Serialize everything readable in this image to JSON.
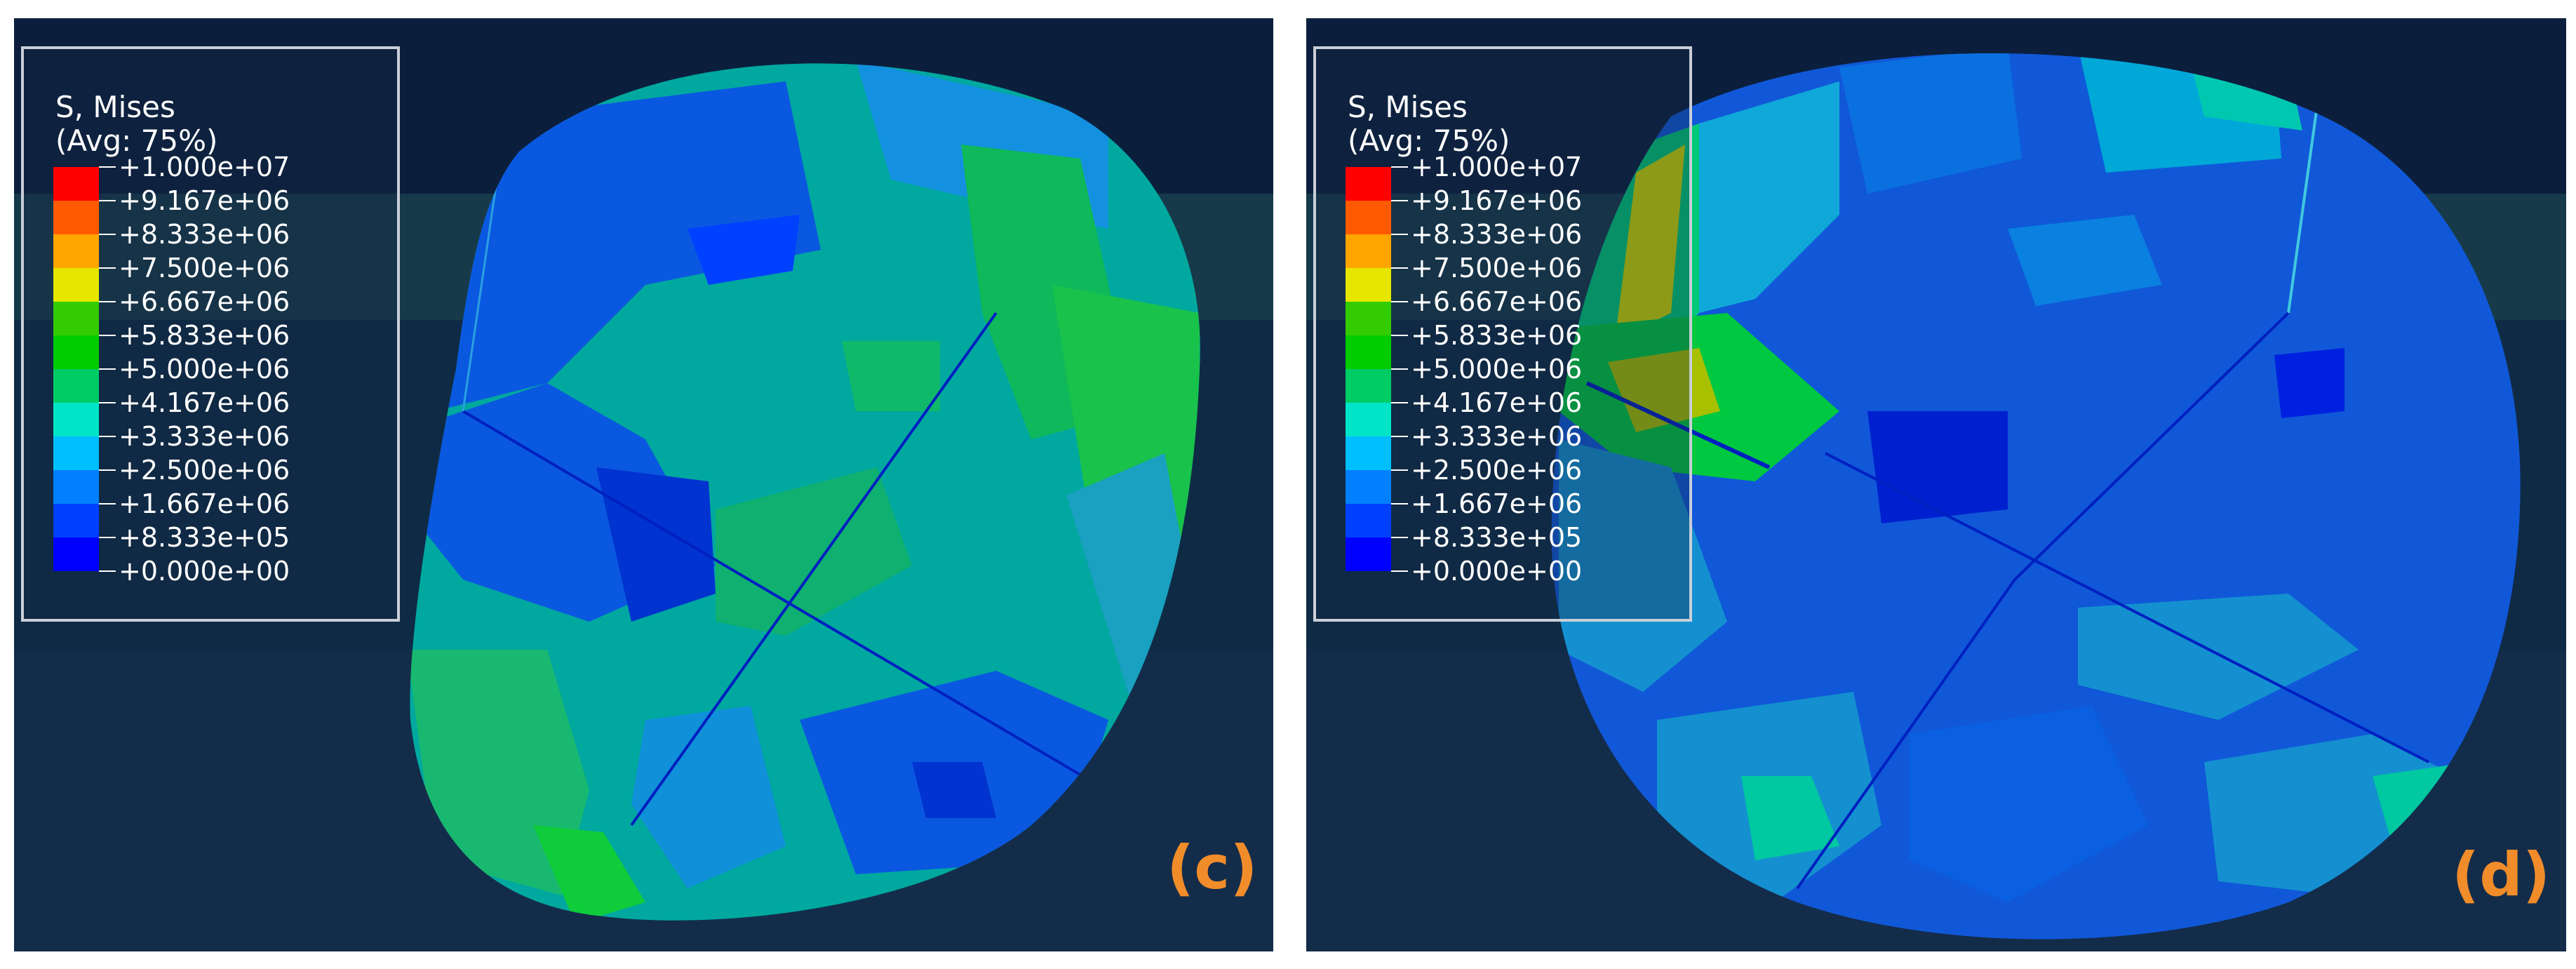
{
  "colors": {
    "background": "#0f2a44",
    "legend_border": "#c9ced8",
    "panel_label": "#f08c2a",
    "contour_scale": [
      "#ff0000",
      "#ff5a00",
      "#ffa500",
      "#e6e600",
      "#33cc00",
      "#00cc00",
      "#00cc66",
      "#00e5c8",
      "#00bfff",
      "#0080ff",
      "#0040ff",
      "#0000ff"
    ]
  },
  "panels": [
    {
      "label": "(c)",
      "legend": {
        "title_line1": "S, Mises",
        "title_line2": "(Avg: 75%)",
        "values": [
          "+1.000e+07",
          "+9.167e+06",
          "+8.333e+06",
          "+7.500e+06",
          "+6.667e+06",
          "+5.833e+06",
          "+5.000e+06",
          "+4.167e+06",
          "+3.333e+06",
          "+2.500e+06",
          "+1.667e+06",
          "+8.333e+05",
          "+0.000e+00"
        ]
      }
    },
    {
      "label": "(d)",
      "legend": {
        "title_line1": "S, Mises",
        "title_line2": "(Avg: 75%)",
        "values": [
          "+1.000e+07",
          "+9.167e+06",
          "+8.333e+06",
          "+7.500e+06",
          "+6.667e+06",
          "+5.833e+06",
          "+5.000e+06",
          "+4.167e+06",
          "+3.333e+06",
          "+2.500e+06",
          "+1.667e+06",
          "+8.333e+05",
          "+0.000e+00"
        ]
      }
    }
  ]
}
